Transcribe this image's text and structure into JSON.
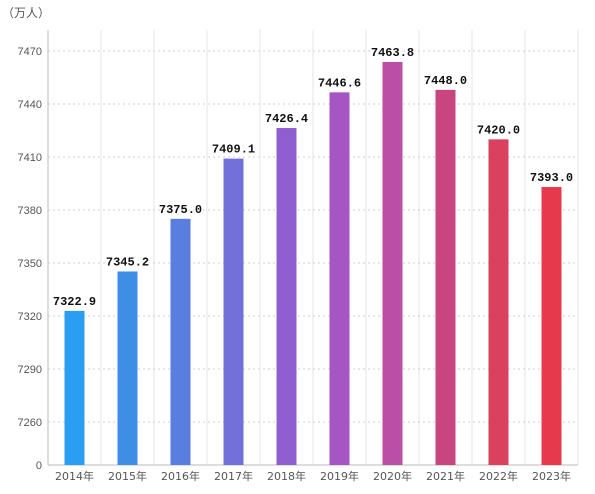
{
  "chart_data": {
    "type": "bar",
    "unit": "（万人）",
    "categories": [
      "2014年",
      "2015年",
      "2016年",
      "2017年",
      "2018年",
      "2019年",
      "2020年",
      "2021年",
      "2022年",
      "2023年"
    ],
    "values": [
      7322.9,
      7345.2,
      7375.0,
      7409.1,
      7426.4,
      7446.6,
      7463.8,
      7448.0,
      7420.0,
      7393.0
    ],
    "value_labels": [
      "7322.9",
      "7345.2",
      "7375.0",
      "7409.1",
      "7426.4",
      "7446.6",
      "7463.8",
      "7448.0",
      "7420.0",
      "7393.0"
    ],
    "y_ticks": [
      "0",
      "7260",
      "7290",
      "7320",
      "7350",
      "7380",
      "7410",
      "7440",
      "7470"
    ],
    "y_tick_values": [
      0,
      7260,
      7290,
      7320,
      7350,
      7380,
      7410,
      7440,
      7470
    ],
    "ylim": [
      0,
      7470
    ],
    "axis_break": true,
    "grid": true,
    "legend": "none",
    "colors": [
      "#2a9ef0",
      "#3f8ee6",
      "#5a7ee0",
      "#7470da",
      "#8f5fd0",
      "#a555c4",
      "#bb4ea6",
      "#c9457f",
      "#d9415e",
      "#e63a4c"
    ]
  }
}
